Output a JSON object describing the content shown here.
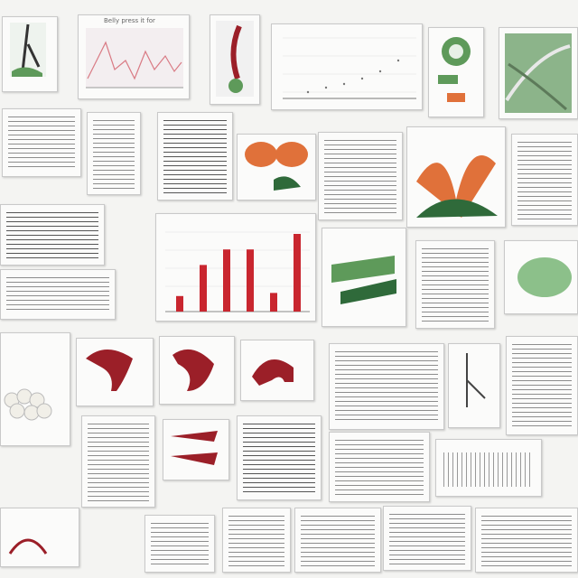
{
  "collage": {
    "title_fragment": "Belly press it for",
    "chart_bar": {
      "bar_values": [
        1,
        3,
        4,
        4,
        1.2,
        5
      ]
    }
  },
  "colors": {
    "crimson": "#9b1f28",
    "orange": "#e0713a",
    "leaf_green": "#5e9a5a",
    "line_pink": "#d97a84",
    "paper": "#fbfbfa"
  },
  "icons": [
    "muscle-illustration-icon",
    "leaf-illustration-icon",
    "nerve-diagram-icon"
  ]
}
